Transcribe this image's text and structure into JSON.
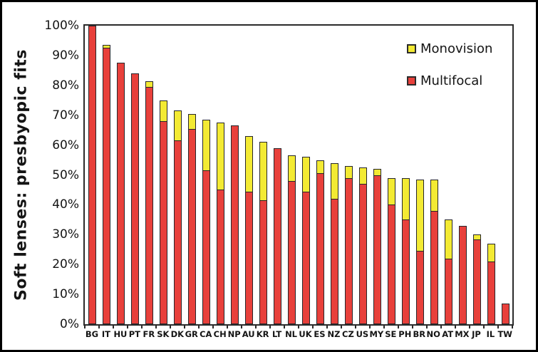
{
  "chart_data": {
    "type": "bar",
    "stacked": true,
    "ylabel": "Soft lenses: presbyopic fits",
    "ylim": [
      0,
      100
    ],
    "grid": false,
    "legend_position": "top-right-inside",
    "background_color": "#ffffff",
    "axis_color": "#2b2b2b",
    "bar_outline_color": "#26262b",
    "yticks": [
      {
        "label": "100%",
        "value": 100
      },
      {
        "label": "90%",
        "value": 90
      },
      {
        "label": "80%",
        "value": 80
      },
      {
        "label": "70%",
        "value": 70
      },
      {
        "label": "60%",
        "value": 60
      },
      {
        "label": "50%",
        "value": 50
      },
      {
        "label": "40%",
        "value": 40
      },
      {
        "label": "30%",
        "value": 30
      },
      {
        "label": "20%",
        "value": 20
      },
      {
        "label": "10%",
        "value": 10
      },
      {
        "label": "0%",
        "value": 0
      }
    ],
    "categories": [
      "BG",
      "IT",
      "HU",
      "PT",
      "FR",
      "SK",
      "DK",
      "GR",
      "CA",
      "CH",
      "NP",
      "AU",
      "KR",
      "LT",
      "NL",
      "UK",
      "ES",
      "NZ",
      "CZ",
      "US",
      "MY",
      "SE",
      "PH",
      "BR",
      "NO",
      "AT",
      "MX",
      "JP",
      "IL",
      "TW"
    ],
    "series": [
      {
        "name": "Monovision",
        "color": "#F3EA33",
        "values": [
          0,
          1,
          0,
          0,
          2,
          7,
          10,
          5,
          17,
          22.5,
          0,
          18.5,
          19.5,
          0,
          8.5,
          11.5,
          4.5,
          12,
          4,
          5.5,
          2,
          9,
          14,
          24,
          10.5,
          13,
          0,
          1.5,
          6,
          0
        ]
      },
      {
        "name": "Multifocal",
        "color": "#E8403B",
        "values": [
          100,
          92.5,
          87.5,
          84,
          79.5,
          68,
          61.5,
          65.5,
          51.5,
          45,
          66.5,
          44.5,
          41.5,
          59,
          48,
          44.5,
          50.5,
          42,
          49,
          47,
          50,
          40,
          35,
          24.5,
          38,
          22,
          33,
          28.5,
          21,
          7
        ]
      }
    ]
  }
}
